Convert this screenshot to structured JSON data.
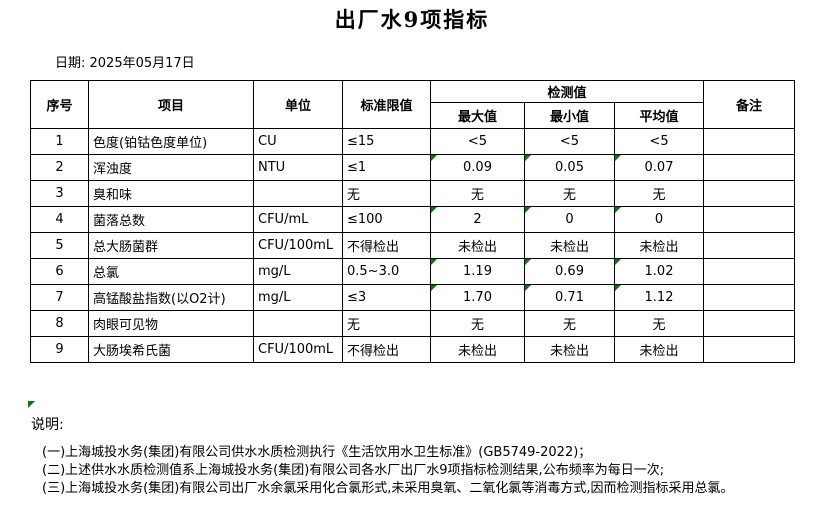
{
  "page": {
    "title": "出厂水9项指标",
    "date_label": "日期: 2025年05月17日"
  },
  "table": {
    "headers": {
      "no": "序号",
      "item": "项目",
      "unit": "单位",
      "limit": "标准限值",
      "detection": "检测值",
      "max": "最大值",
      "min": "最小值",
      "avg": "平均值",
      "remark": "备注"
    },
    "rows": [
      {
        "no": "1",
        "item": "色度(铂钴色度单位)",
        "unit": "CU",
        "limit": "≤15",
        "max": "<5",
        "min": "<5",
        "avg": "<5",
        "remark": "",
        "flagged": false
      },
      {
        "no": "2",
        "item": "浑浊度",
        "unit": "NTU",
        "limit": "≤1",
        "max": "0.09",
        "min": "0.05",
        "avg": "0.07",
        "remark": "",
        "flagged": true
      },
      {
        "no": "3",
        "item": "臭和味",
        "unit": "",
        "limit": "无",
        "max": "无",
        "min": "无",
        "avg": "无",
        "remark": "",
        "flagged": false
      },
      {
        "no": "4",
        "item": "菌落总数",
        "unit": "CFU/mL",
        "limit": "≤100",
        "max": "2",
        "min": "0",
        "avg": "0",
        "remark": "",
        "flagged": true
      },
      {
        "no": "5",
        "item": "总大肠菌群",
        "unit": "CFU/100mL",
        "limit": "不得检出",
        "max": "未检出",
        "min": "未检出",
        "avg": "未检出",
        "remark": "",
        "flagged": false
      },
      {
        "no": "6",
        "item": "总氯",
        "unit": "mg/L",
        "limit": "0.5~3.0",
        "max": "1.19",
        "min": "0.69",
        "avg": "1.02",
        "remark": "",
        "flagged": true
      },
      {
        "no": "7",
        "item": "高锰酸盐指数(以O2计)",
        "unit": "mg/L",
        "limit": "≤3",
        "max": "1.70",
        "min": "0.71",
        "avg": "1.12",
        "remark": "",
        "flagged": true
      },
      {
        "no": "8",
        "item": "肉眼可见物",
        "unit": "",
        "limit": "无",
        "max": "无",
        "min": "无",
        "avg": "无",
        "remark": "",
        "flagged": false
      },
      {
        "no": "9",
        "item": "大肠埃希氏菌",
        "unit": "CFU/100mL",
        "limit": "不得检出",
        "max": "未检出",
        "min": "未检出",
        "avg": "未检出",
        "remark": "",
        "flagged": false
      }
    ]
  },
  "notes": {
    "label": "说明:",
    "lines": [
      "(一)上海城投水务(集团)有限公司供水水质检测执行《生活饮用水卫生标准》(GB5749-2022)；",
      "(二)上述供水水质检测值系上海城投水务(集团)有限公司各水厂出厂水9项指标检测结果,公布频率为每日一次;",
      "(三)上海城投水务(集团)有限公司出厂水余氯采用化合氯形式,未采用臭氧、二氧化氯等消毒方式,因而检测指标采用总氯。"
    ]
  },
  "colors": {
    "flag_green": "#007A00",
    "border": "#000000"
  }
}
